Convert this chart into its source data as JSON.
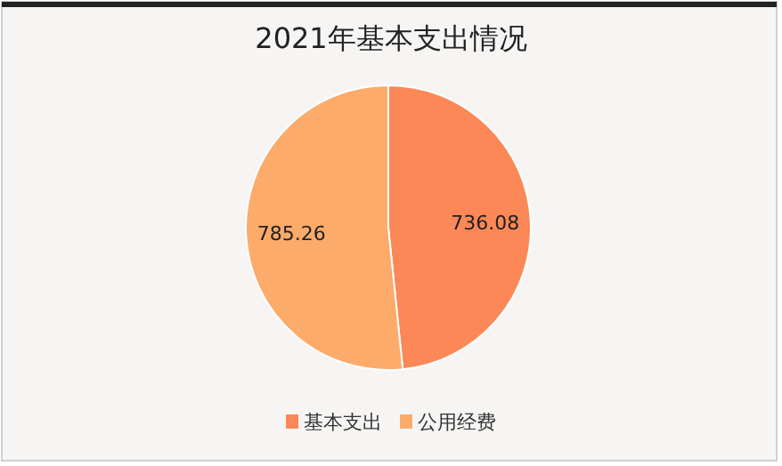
{
  "chart_data": {
    "type": "pie",
    "title": "2021年基本支出情况",
    "categories": [
      "基本支出",
      "公用经费"
    ],
    "values": [
      736.08,
      785.26
    ],
    "colors": [
      "#fb8856",
      "#fdab6a"
    ],
    "data_labels": true,
    "legend": "bottom"
  }
}
